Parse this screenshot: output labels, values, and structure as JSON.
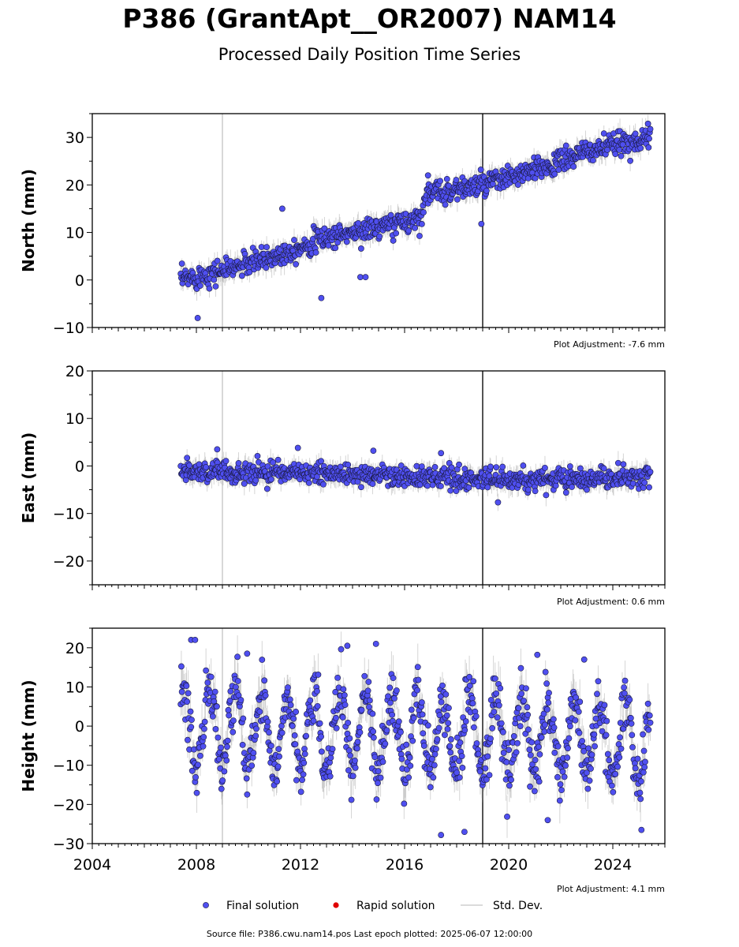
{
  "title": "P386 (GrantApt__OR2007) NAM14",
  "subtitle": "Processed Daily Position Time Series",
  "footer": "Source file: P386.cwu.nam14.pos  Last epoch plotted: 2025-06-07 12:00:00",
  "colors": {
    "final": "#4f4ff0",
    "rapid": "#e00000",
    "stddev": "#888888",
    "event_line": "#555555"
  },
  "legend": {
    "final": "Final solution",
    "rapid": "Rapid solution",
    "stddev": "Std. Dev."
  },
  "chart_data": [
    {
      "type": "scatter",
      "ylabel": "North (mm)",
      "adjustment": "Plot Adjustment: -7.6 mm",
      "xlim": [
        2004,
        2026
      ],
      "ylim": [
        -10,
        35
      ],
      "yticks": [
        -10,
        0,
        10,
        20,
        30
      ],
      "xticks": [],
      "event_lines": [
        {
          "x": 2009.0,
          "style": "light"
        },
        {
          "x": 2019.0,
          "style": "dark"
        }
      ],
      "series": [
        {
          "trend": [
            [
              2007.4,
              0
            ],
            [
              2009.0,
              2
            ],
            [
              2011.0,
              5
            ],
            [
              2013.0,
              9
            ],
            [
              2015.0,
              11
            ],
            [
              2016.6,
              13
            ],
            [
              2016.8,
              18
            ],
            [
              2019.0,
              20
            ],
            [
              2021.0,
              23
            ],
            [
              2023.0,
              27
            ],
            [
              2025.4,
              30
            ]
          ],
          "range": [
            2007.4,
            2025.45
          ],
          "scatter": 1.2,
          "outliers": [
            [
              2008.05,
              -8
            ],
            [
              2011.3,
              15
            ],
            [
              2012.8,
              -3.8
            ],
            [
              2014.3,
              0.6
            ],
            [
              2014.5,
              0.6
            ],
            [
              2018.95,
              11.8
            ],
            [
              2016.9,
              22
            ]
          ]
        }
      ]
    },
    {
      "type": "scatter",
      "ylabel": "East (mm)",
      "adjustment": "Plot Adjustment: 0.6 mm",
      "xlim": [
        2004,
        2026
      ],
      "ylim": [
        -25,
        20
      ],
      "yticks": [
        -20,
        -10,
        0,
        10,
        20
      ],
      "xticks": [],
      "event_lines": [
        {
          "x": 2009.0,
          "style": "light"
        },
        {
          "x": 2019.0,
          "style": "dark"
        }
      ],
      "series": [
        {
          "trend": [
            [
              2007.4,
              -1
            ],
            [
              2012.0,
              -1.5
            ],
            [
              2016.0,
              -2.2
            ],
            [
              2019.0,
              -2.8
            ],
            [
              2025.4,
              -2.5
            ]
          ],
          "range": [
            2007.4,
            2025.45
          ],
          "scatter": 1.1,
          "outliers": [
            [
              2008.8,
              3.5
            ],
            [
              2011.9,
              3.8
            ],
            [
              2014.8,
              3.2
            ],
            [
              2017.4,
              2.7
            ],
            [
              2023.0,
              -5
            ]
          ]
        }
      ]
    },
    {
      "type": "scatter",
      "ylabel": "Height (mm)",
      "adjustment": "Plot Adjustment: 4.1 mm",
      "xlim": [
        2004,
        2026
      ],
      "ylim": [
        -30,
        25
      ],
      "yticks": [
        -30,
        -20,
        -10,
        0,
        10,
        20
      ],
      "xticks": [
        2004,
        2008,
        2012,
        2016,
        2020,
        2024
      ],
      "event_lines": [
        {
          "x": 2009.0,
          "style": "light"
        },
        {
          "x": 2019.0,
          "style": "dark"
        }
      ],
      "series": [
        {
          "trend": [
            [
              2007.4,
              0
            ],
            [
              2025.45,
              -4
            ]
          ],
          "seasonal_amplitude": 10,
          "range": [
            2007.4,
            2025.45
          ],
          "scatter": 3.5,
          "outliers": [
            [
              2007.8,
              22
            ],
            [
              2007.95,
              22
            ],
            [
              2009.95,
              18.5
            ],
            [
              2013.8,
              20.5
            ],
            [
              2014.9,
              21
            ],
            [
              2017.4,
              -27.8
            ],
            [
              2018.3,
              -27
            ],
            [
              2021.1,
              18.2
            ],
            [
              2022.9,
              17
            ],
            [
              2025.1,
              -26.5
            ],
            [
              2021.5,
              -24
            ]
          ]
        }
      ]
    }
  ]
}
